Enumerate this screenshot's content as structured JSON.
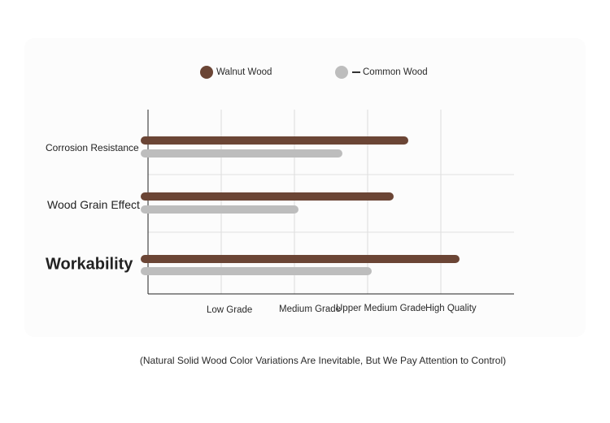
{
  "chart_data": {
    "type": "bar",
    "orientation": "horizontal",
    "categories": [
      "Corrosion Resistance",
      "Wood Grain Effect",
      "Workability"
    ],
    "series": [
      {
        "name": "Walnut Wood",
        "color": "#6b4535",
        "values": [
          3.5,
          3.3,
          4.2
        ]
      },
      {
        "name": "Common Wood",
        "color": "#bdbdbd",
        "values": [
          2.6,
          2.0,
          3.0
        ]
      }
    ],
    "x_tick_labels": [
      "Low Grade",
      "Medium Grade",
      "Upper Medium Grade",
      "High Quality"
    ],
    "x_tick_positions": [
      1,
      2,
      3,
      4
    ],
    "xlim": [
      0,
      5
    ],
    "grid": true,
    "legend_position": "top",
    "note": "(Natural Solid Wood Color Variations Are Inevitable, But We Pay Attention to Control)"
  }
}
